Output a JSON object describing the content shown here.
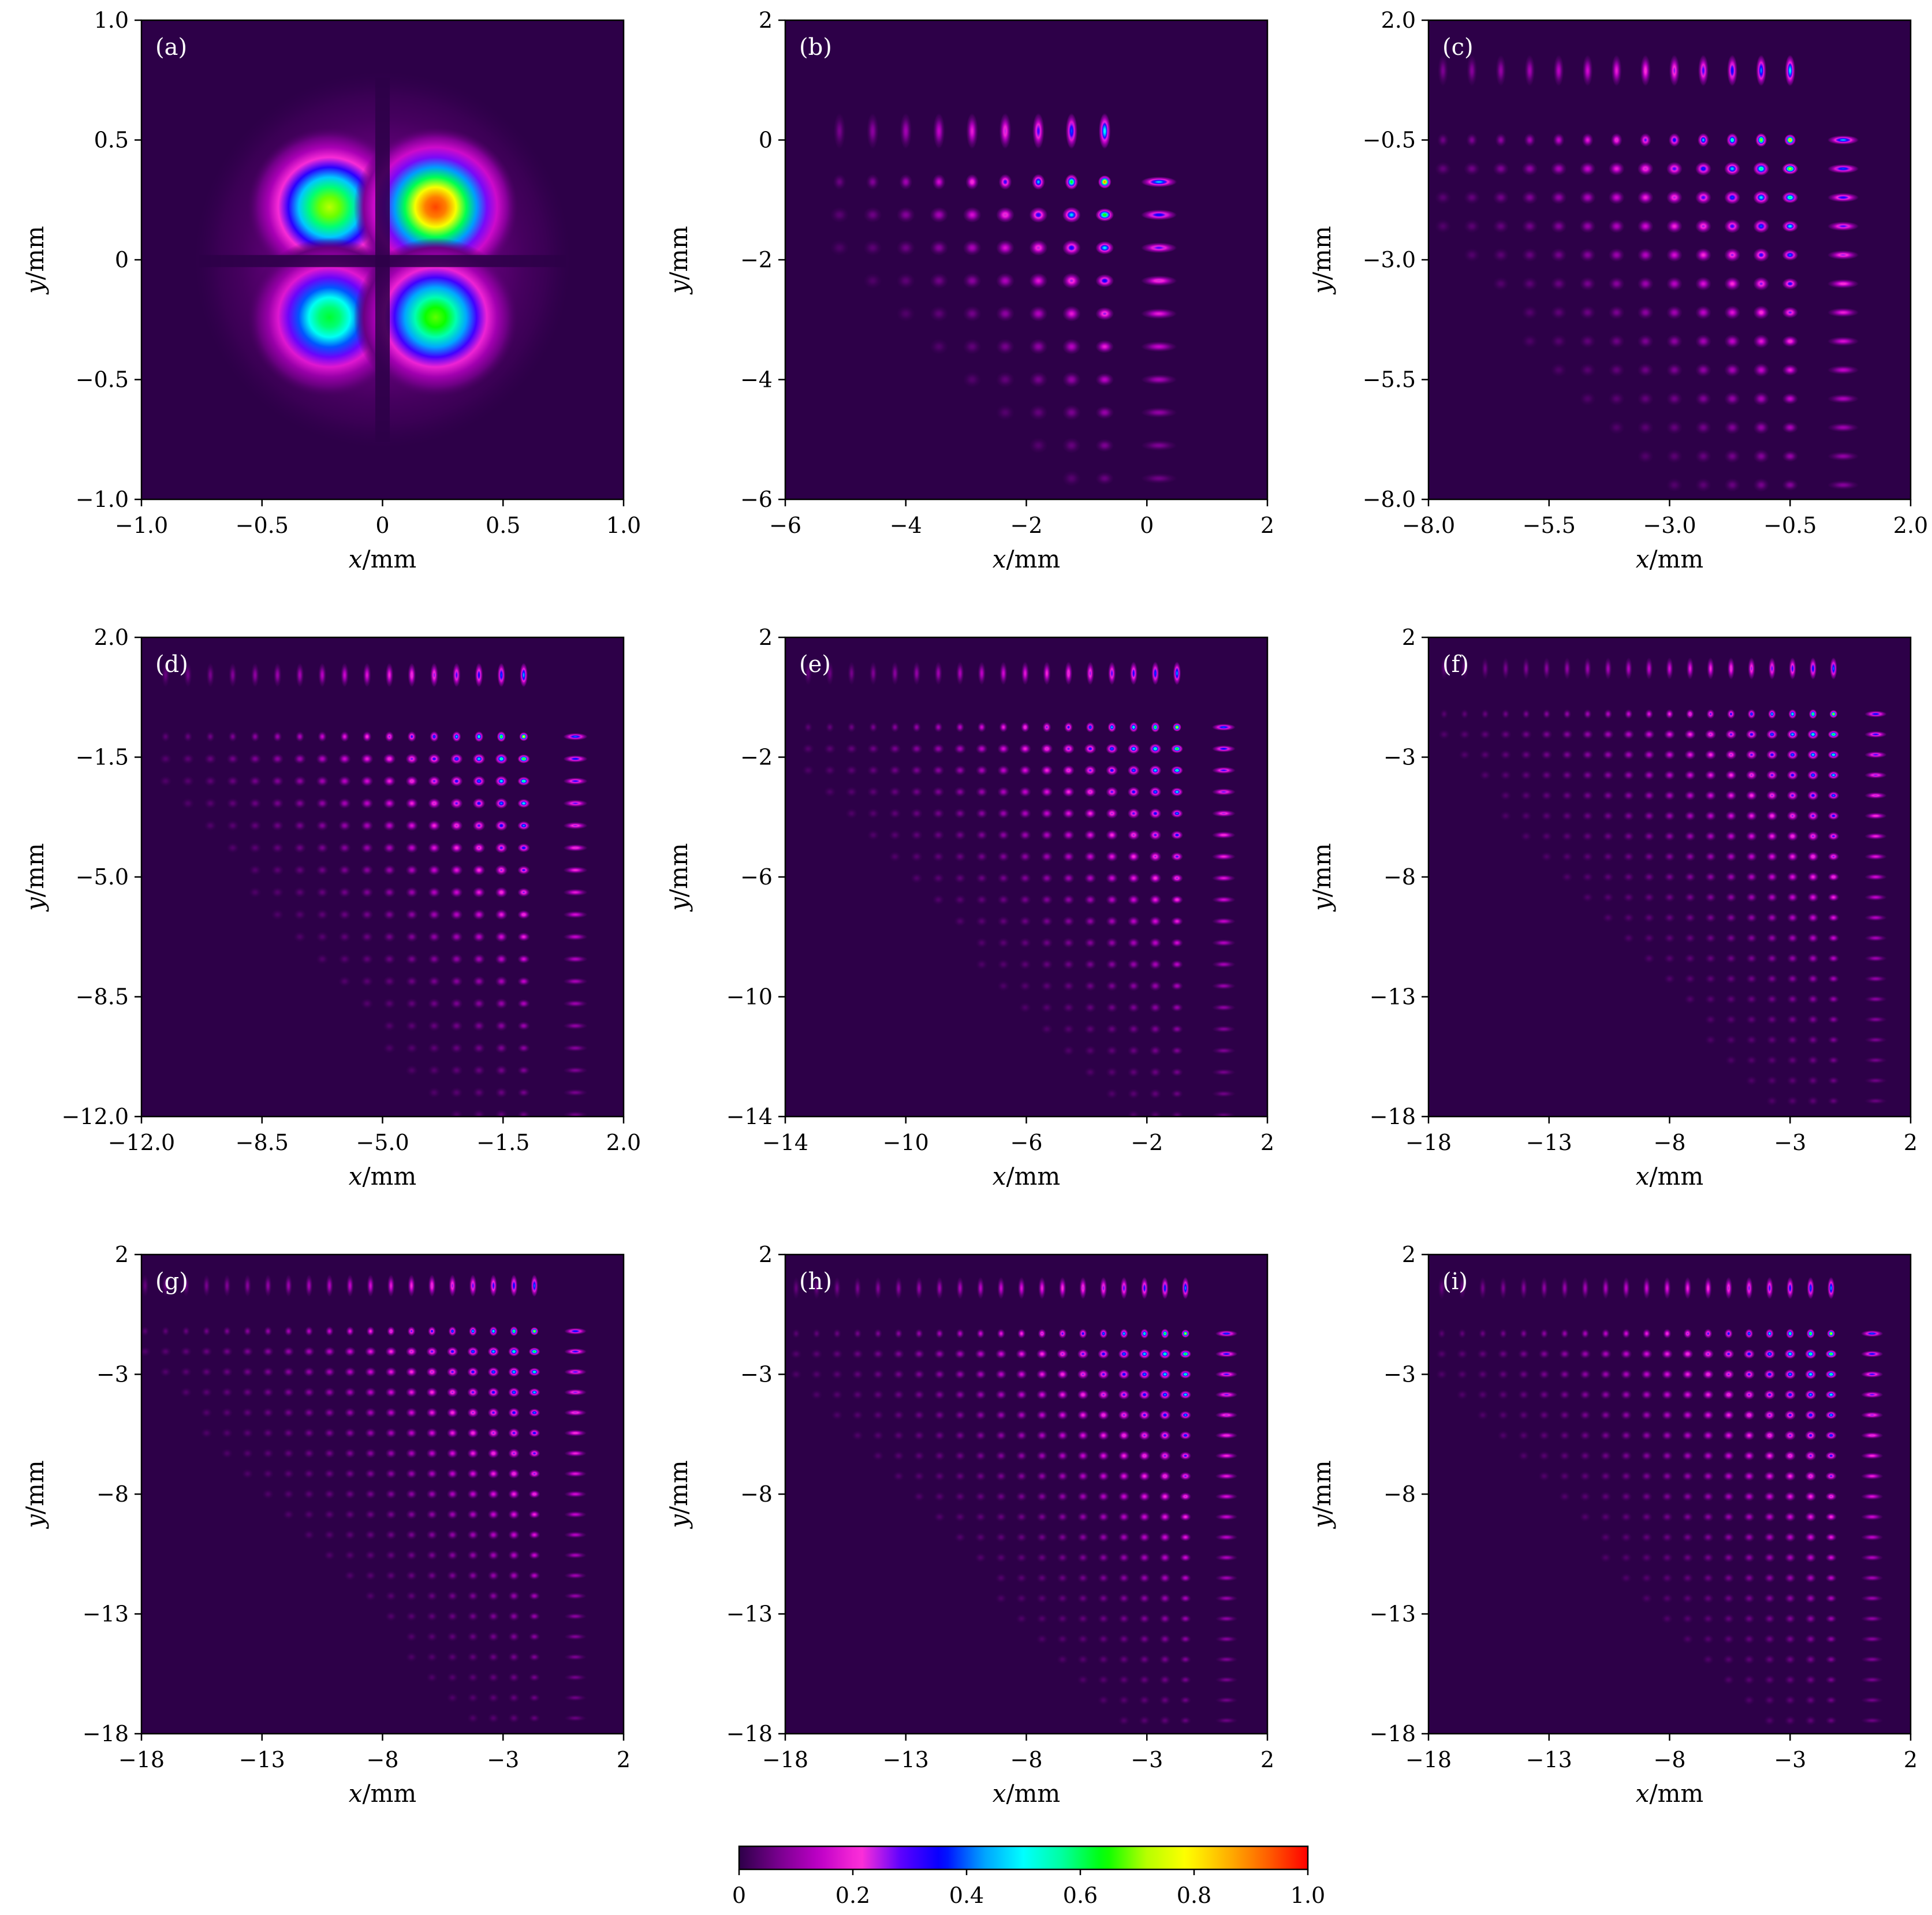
{
  "chart_data": {
    "type": "heatmap",
    "colormap": {
      "name": "gist_ncar-like",
      "stops": [
        "#2d0048",
        "#7a0090",
        "#c000c8",
        "#ff30d8",
        "#5a00ff",
        "#0000ff",
        "#00a0ff",
        "#00ffff",
        "#00ff9a",
        "#00ff00",
        "#b4ff00",
        "#ffff00",
        "#ffb400",
        "#ff6000",
        "#ff0000"
      ],
      "range": [
        0,
        1.0
      ],
      "ticks": [
        "0",
        "0.2",
        "0.4",
        "0.6",
        "0.8",
        "1.0"
      ]
    },
    "background_color": "#2d0048",
    "panels": [
      {
        "label": "(a)",
        "xlabel": "x/mm",
        "ylabel": "y/mm",
        "xlim": [
          -1.0,
          1.0
        ],
        "ylim": [
          -1.0,
          1.0
        ],
        "xticks": [
          -1.0,
          -0.5,
          0,
          0.5,
          1.0
        ],
        "xtick_labels": [
          "−1.0",
          "−0.5",
          "0",
          "0.5",
          "1.0"
        ],
        "yticks": [
          -1.0,
          -0.5,
          0,
          0.5,
          1.0
        ],
        "ytick_labels": [
          "−1.0",
          "−0.5",
          "0",
          "0.5",
          "1.0"
        ],
        "pattern": "four-lobe",
        "lobes": [
          {
            "x": -0.22,
            "y": 0.22,
            "peak": 0.72
          },
          {
            "x": 0.22,
            "y": 0.22,
            "peak": 0.95
          },
          {
            "x": -0.22,
            "y": -0.24,
            "peak": 0.62
          },
          {
            "x": 0.22,
            "y": -0.24,
            "peak": 0.68
          }
        ]
      },
      {
        "label": "(b)",
        "xlabel": "x/mm",
        "ylabel": "y/mm",
        "xlim": [
          -6,
          2
        ],
        "ylim": [
          -6,
          2
        ],
        "xticks": [
          -6,
          -4,
          -2,
          0,
          2
        ],
        "xtick_labels": [
          "−6",
          "−4",
          "−2",
          "0",
          "2"
        ],
        "yticks": [
          -6,
          -4,
          -2,
          0,
          2
        ],
        "ytick_labels": [
          "−6",
          "−4",
          "−2",
          "0",
          "2"
        ],
        "pattern": "lattice",
        "lattice": {
          "corner_x": -0.7,
          "corner_y": -0.7,
          "spacing": 0.55,
          "nx": 9,
          "ny": 10,
          "peak": 0.92,
          "top_row_y": 0.15,
          "right_col_x": 0.2
        }
      },
      {
        "label": "(c)",
        "xlabel": "x/mm",
        "ylabel": "y/mm",
        "xlim": [
          -8.0,
          2.0
        ],
        "ylim": [
          -8.0,
          2.0
        ],
        "xticks": [
          -8.0,
          -5.5,
          -3.0,
          -0.5,
          2.0
        ],
        "xtick_labels": [
          "−8.0",
          "−5.5",
          "−3.0",
          "−0.5",
          "2.0"
        ],
        "yticks": [
          -8.0,
          -5.5,
          -3.0,
          -0.5,
          2.0
        ],
        "ytick_labels": [
          "−8.0",
          "−5.5",
          "−3.0",
          "−0.5",
          "2.0"
        ],
        "pattern": "lattice",
        "lattice": {
          "corner_x": -0.5,
          "corner_y": -0.5,
          "spacing": 0.6,
          "nx": 14,
          "ny": 16,
          "peak": 0.9,
          "top_row_y": 0.95,
          "right_col_x": 0.6
        }
      },
      {
        "label": "(d)",
        "xlabel": "x/mm",
        "ylabel": "y/mm",
        "xlim": [
          -12.0,
          2.0
        ],
        "ylim": [
          -12.0,
          2.0
        ],
        "xticks": [
          -12.0,
          -8.5,
          -5.0,
          -1.5,
          2.0
        ],
        "xtick_labels": [
          "−12.0",
          "−8.5",
          "−5.0",
          "−1.5",
          "2.0"
        ],
        "yticks": [
          -12.0,
          -8.5,
          -5.0,
          -1.5,
          2.0
        ],
        "ytick_labels": [
          "−12.0",
          "−8.5",
          "−5.0",
          "−1.5",
          "2.0"
        ],
        "pattern": "lattice",
        "lattice": {
          "corner_x": -0.9,
          "corner_y": -0.9,
          "spacing": 0.65,
          "nx": 17,
          "ny": 20,
          "peak": 0.82,
          "top_row_y": 0.9,
          "right_col_x": 0.6
        }
      },
      {
        "label": "(e)",
        "xlabel": "x/mm",
        "ylabel": "y/mm",
        "xlim": [
          -14,
          2
        ],
        "ylim": [
          -14,
          2
        ],
        "xticks": [
          -14,
          -10,
          -6,
          -2,
          2
        ],
        "xtick_labels": [
          "−14",
          "−10",
          "−6",
          "−2",
          "2"
        ],
        "yticks": [
          -14,
          -10,
          -6,
          -2,
          2
        ],
        "ytick_labels": [
          "−14",
          "−10",
          "−6",
          "−2",
          "2"
        ],
        "pattern": "lattice",
        "lattice": {
          "corner_x": -1.0,
          "corner_y": -1.0,
          "spacing": 0.72,
          "nx": 18,
          "ny": 20,
          "peak": 0.8,
          "top_row_y": 0.8,
          "right_col_x": 0.55
        }
      },
      {
        "label": "(f)",
        "xlabel": "x/mm",
        "ylabel": "y/mm",
        "xlim": [
          -18,
          2
        ],
        "ylim": [
          -18,
          2
        ],
        "xticks": [
          -18,
          -13,
          -8,
          -3,
          2
        ],
        "xtick_labels": [
          "−18",
          "−13",
          "−8",
          "−3",
          "2"
        ],
        "yticks": [
          -18,
          -13,
          -8,
          -3,
          2
        ],
        "ytick_labels": [
          "−18",
          "−13",
          "−8",
          "−3",
          "2"
        ],
        "pattern": "lattice",
        "lattice": {
          "corner_x": -1.2,
          "corner_y": -1.2,
          "spacing": 0.85,
          "nx": 20,
          "ny": 22,
          "peak": 0.75,
          "top_row_y": 0.7,
          "right_col_x": 0.55
        }
      },
      {
        "label": "(g)",
        "xlabel": "x/mm",
        "ylabel": "y/mm",
        "xlim": [
          -18,
          2
        ],
        "ylim": [
          -18,
          2
        ],
        "xticks": [
          -18,
          -13,
          -8,
          -3,
          2
        ],
        "xtick_labels": [
          "−18",
          "−13",
          "−8",
          "−3",
          "2"
        ],
        "yticks": [
          -18,
          -13,
          -8,
          -3,
          2
        ],
        "ytick_labels": [
          "−18",
          "−13",
          "−8",
          "−3",
          "2"
        ],
        "pattern": "lattice",
        "lattice": {
          "corner_x": -1.7,
          "corner_y": -1.2,
          "spacing": 0.85,
          "nx": 20,
          "ny": 22,
          "peak": 0.75,
          "top_row_y": 0.7,
          "right_col_x": 0.0
        }
      },
      {
        "label": "(h)",
        "xlabel": "x/mm",
        "ylabel": "y/mm",
        "xlim": [
          -18,
          2
        ],
        "ylim": [
          -18,
          2
        ],
        "xticks": [
          -18,
          -13,
          -8,
          -3,
          2
        ],
        "xtick_labels": [
          "−18",
          "−13",
          "−8",
          "−3",
          "2"
        ],
        "yticks": [
          -18,
          -13,
          -8,
          -3,
          2
        ],
        "ytick_labels": [
          "−18",
          "−13",
          "−8",
          "−3",
          "2"
        ],
        "pattern": "lattice",
        "lattice": {
          "corner_x": -1.4,
          "corner_y": -1.3,
          "spacing": 0.85,
          "nx": 20,
          "ny": 22,
          "peak": 0.78,
          "top_row_y": 0.6,
          "right_col_x": 0.3
        }
      },
      {
        "label": "(i)",
        "xlabel": "x/mm",
        "ylabel": "y/mm",
        "xlim": [
          -18,
          2
        ],
        "ylim": [
          -18,
          2
        ],
        "xticks": [
          -18,
          -13,
          -8,
          -3,
          2
        ],
        "xtick_labels": [
          "−18",
          "−13",
          "−8",
          "−3",
          "2"
        ],
        "yticks": [
          -18,
          -13,
          -8,
          -3,
          2
        ],
        "ytick_labels": [
          "−18",
          "−13",
          "−8",
          "−3",
          "2"
        ],
        "pattern": "lattice",
        "lattice": {
          "corner_x": -1.3,
          "corner_y": -1.3,
          "spacing": 0.85,
          "nx": 20,
          "ny": 22,
          "peak": 0.8,
          "top_row_y": 0.6,
          "right_col_x": 0.4
        }
      }
    ]
  }
}
